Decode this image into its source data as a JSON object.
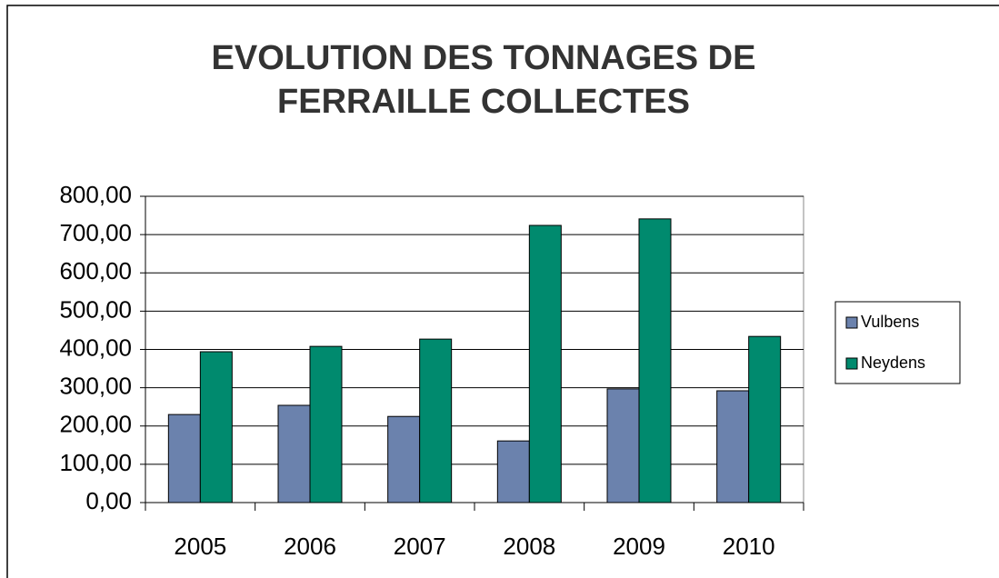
{
  "chart_data": {
    "type": "bar",
    "title": "EVOLUTION DES TONNAGES DE FERRAILLE COLLECTES",
    "categories": [
      "2005",
      "2006",
      "2007",
      "2008",
      "2009",
      "2010"
    ],
    "series": [
      {
        "name": "Vulbens",
        "color": "#6b82ad",
        "values": [
          230,
          254,
          225,
          161,
          297,
          292
        ]
      },
      {
        "name": "Neydens",
        "color": "#008a6e",
        "values": [
          394,
          408,
          427,
          724,
          741,
          434
        ]
      }
    ],
    "ylim": [
      0,
      800
    ],
    "yticks": [
      {
        "value": 0,
        "label": "0,00"
      },
      {
        "value": 100,
        "label": "100,00"
      },
      {
        "value": 200,
        "label": "200,00"
      },
      {
        "value": 300,
        "label": "300,00"
      },
      {
        "value": 400,
        "label": "400,00"
      },
      {
        "value": 500,
        "label": "500,00"
      },
      {
        "value": 600,
        "label": "600,00"
      },
      {
        "value": 700,
        "label": "700,00"
      },
      {
        "value": 800,
        "label": "800,00"
      }
    ],
    "grid": true,
    "legend": "right"
  }
}
